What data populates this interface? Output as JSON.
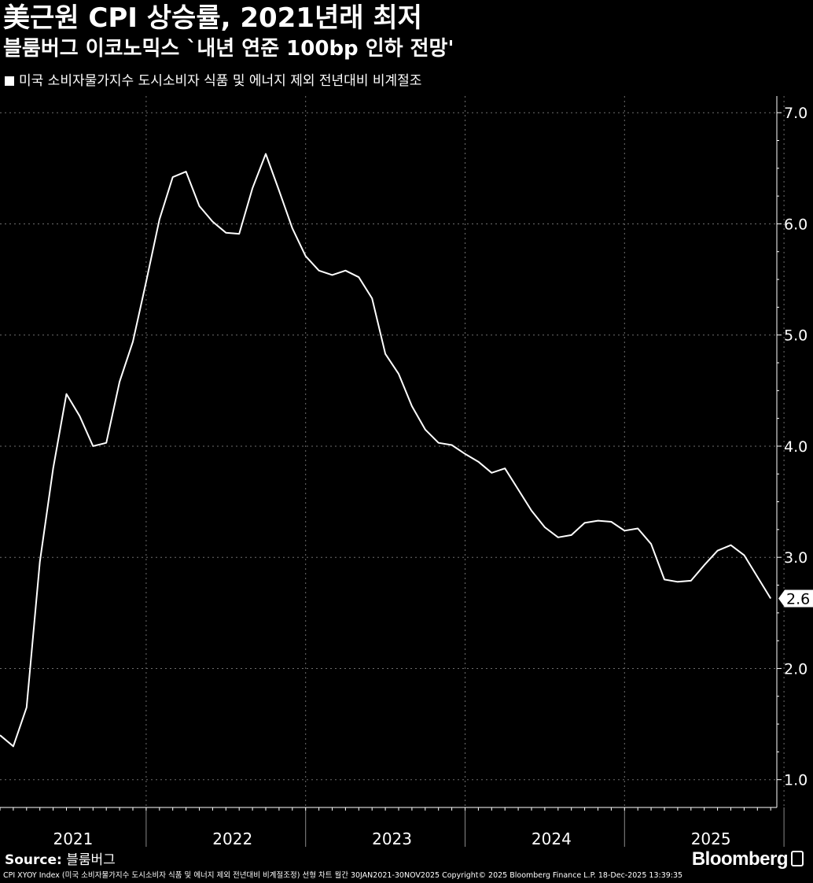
{
  "title": "美근원 CPI 상승률, 2021년래 최저",
  "subtitle": "블룸버그 이코노믹스 `내년 연준 100bp 인하 전망'",
  "legend_label": "미국 소비자물가지수 도시소비자 식품 및 에너지 제외 전년대비 비계절조",
  "source_label": "Source:",
  "source_value": "블룸버그",
  "brand": "Bloomberg",
  "footer": "CPI XYOY Index (미국 소비자물가지수 도시소비자 식품 및 에너지 제외 전년대비 비계절조정) 선형 차트 월간 30JAN2021-30NOV2025 Copyright© 2025 Bloomberg Finance L.P. 18-Dec-2025 13:39:35",
  "colors": {
    "background": "#000000",
    "line": "#ffffff",
    "grid": "#6e6e6e"
  },
  "chart_data": {
    "type": "line",
    "title": "美근원 CPI 상승률, 2021년래 최저",
    "subtitle": "블룸버그 이코노믹스 `내년 연준 100bp 인하 전망'",
    "ylim": [
      0.75,
      7.15
    ],
    "y_ticks": [
      "1.0",
      "2.0",
      "3.0",
      "4.0",
      "5.0",
      "6.0",
      "7.0"
    ],
    "y_tick_values": [
      1,
      2,
      3,
      4,
      5,
      6,
      7
    ],
    "x_tick_labels": [
      "2021",
      "2022",
      "2023",
      "2024",
      "2025"
    ],
    "grid": true,
    "y_axis_position": "right",
    "last_value_label": "2.6",
    "series": [
      {
        "name": "미국 소비자물가지수 도시소비자 식품 및 에너지 제외 전년대비 비계절조",
        "x": [
          "2021-01",
          "2021-02",
          "2021-03",
          "2021-04",
          "2021-05",
          "2021-06",
          "2021-07",
          "2021-08",
          "2021-09",
          "2021-10",
          "2021-11",
          "2021-12",
          "2022-01",
          "2022-02",
          "2022-03",
          "2022-04",
          "2022-05",
          "2022-06",
          "2022-07",
          "2022-08",
          "2022-09",
          "2022-10",
          "2022-11",
          "2022-12",
          "2023-01",
          "2023-02",
          "2023-03",
          "2023-04",
          "2023-05",
          "2023-06",
          "2023-07",
          "2023-08",
          "2023-09",
          "2023-10",
          "2023-11",
          "2023-12",
          "2024-01",
          "2024-02",
          "2024-03",
          "2024-04",
          "2024-05",
          "2024-06",
          "2024-07",
          "2024-08",
          "2024-09",
          "2024-10",
          "2024-11",
          "2024-12",
          "2025-01",
          "2025-02",
          "2025-03",
          "2025-04",
          "2025-05",
          "2025-06",
          "2025-07",
          "2025-08",
          "2025-09",
          "2025-10",
          "2025-11"
        ],
        "values": [
          1.4,
          1.3,
          1.65,
          2.96,
          3.8,
          4.47,
          4.27,
          4.0,
          4.03,
          4.58,
          4.94,
          5.48,
          6.04,
          6.42,
          6.47,
          6.16,
          6.02,
          5.92,
          5.91,
          6.32,
          6.63,
          6.3,
          5.96,
          5.71,
          5.58,
          5.54,
          5.58,
          5.52,
          5.33,
          4.83,
          4.65,
          4.36,
          4.15,
          4.03,
          4.01,
          3.93,
          3.86,
          3.76,
          3.8,
          3.61,
          3.42,
          3.27,
          3.18,
          3.2,
          3.31,
          3.33,
          3.32,
          3.24,
          3.26,
          3.12,
          2.8,
          2.78,
          2.79,
          2.93,
          3.06,
          3.11,
          3.02,
          null,
          2.63
        ]
      }
    ]
  }
}
